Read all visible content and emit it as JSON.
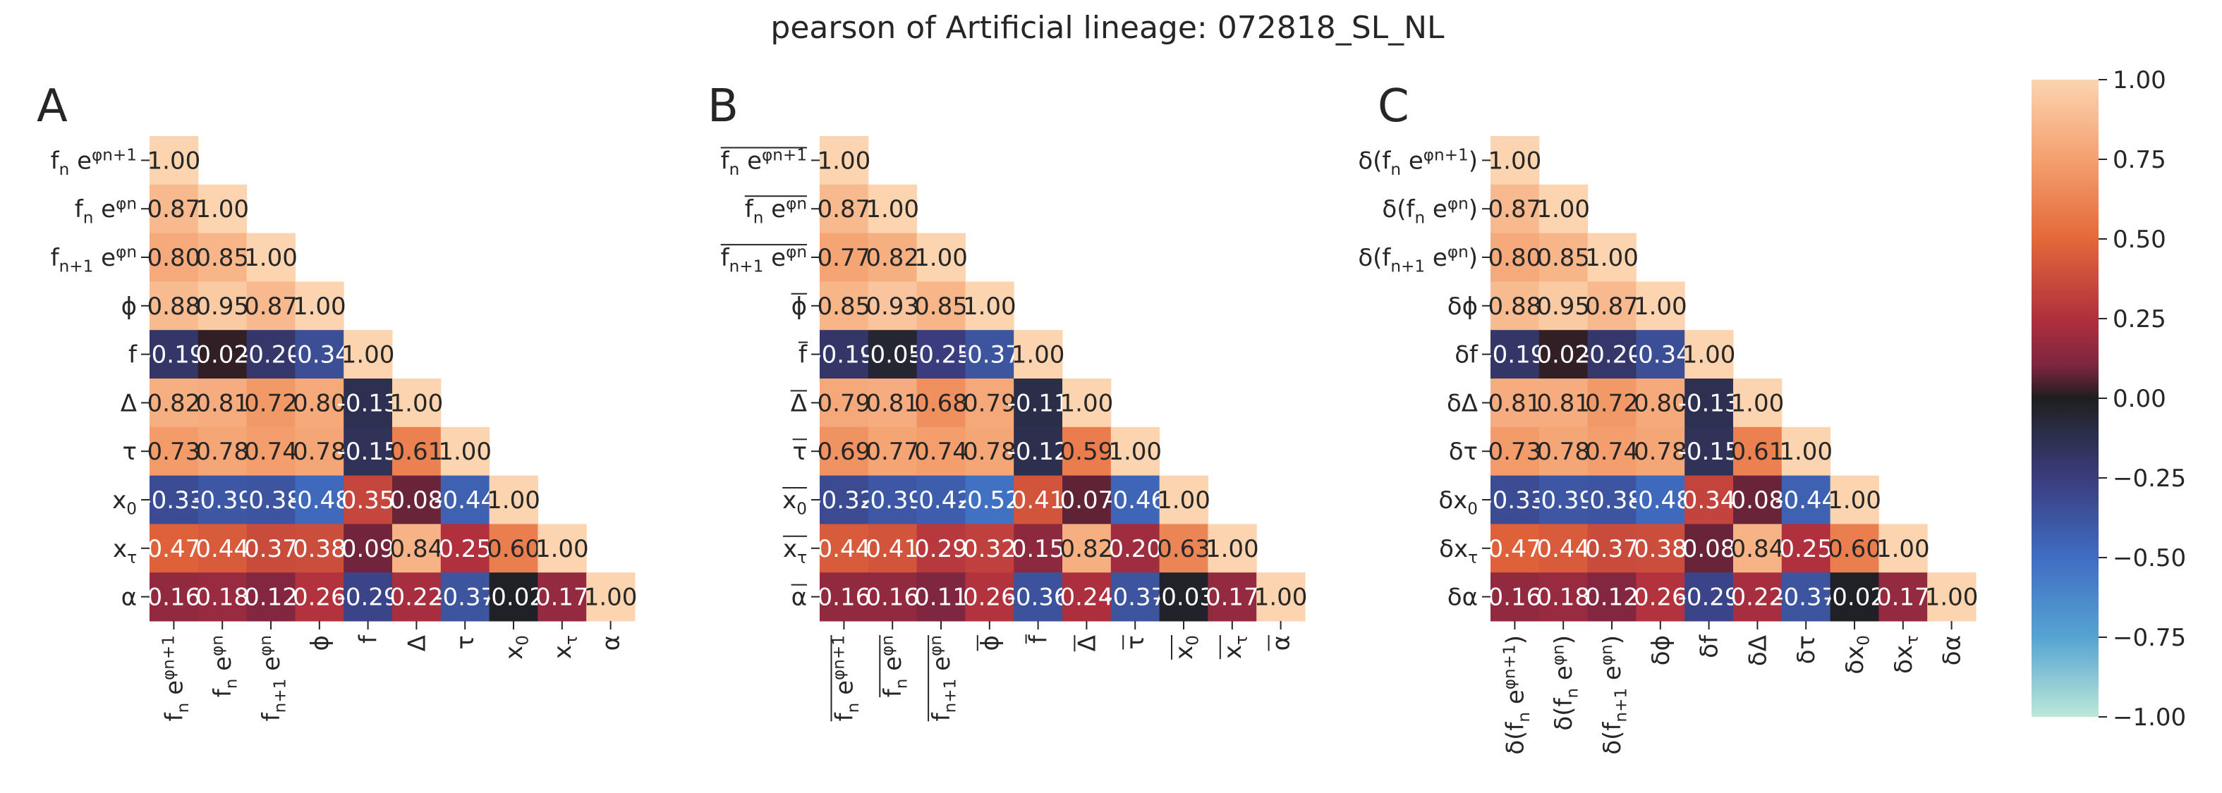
{
  "title": "pearson of Artificial lineage: 072818_SL_NL",
  "chart_data": [
    {
      "type": "heatmap",
      "panel": "A",
      "labels": [
        "f_n e^{φ_{n+1}}",
        "f_n e^{φ_n}",
        "f_{n+1} e^{φ_n}",
        "ϕ",
        "f",
        "Δ",
        "τ",
        "x_0",
        "x_τ",
        "α"
      ],
      "matrix": [
        [
          1.0
        ],
        [
          0.87,
          1.0
        ],
        [
          0.8,
          0.85,
          1.0
        ],
        [
          0.88,
          0.95,
          0.87,
          1.0
        ],
        [
          -0.19,
          0.02,
          -0.2,
          -0.34,
          1.0
        ],
        [
          0.82,
          0.81,
          0.72,
          0.8,
          -0.13,
          1.0
        ],
        [
          0.73,
          0.78,
          0.74,
          0.78,
          -0.15,
          0.61,
          1.0
        ],
        [
          -0.33,
          -0.39,
          -0.38,
          -0.48,
          0.35,
          0.08,
          -0.44,
          1.0
        ],
        [
          0.47,
          0.44,
          0.37,
          0.38,
          0.09,
          0.84,
          0.25,
          0.6,
          1.0
        ],
        [
          0.16,
          0.18,
          0.12,
          0.26,
          -0.29,
          0.22,
          -0.37,
          -0.02,
          0.17,
          1.0
        ]
      ],
      "vmin": -1,
      "vmax": 1
    },
    {
      "type": "heatmap",
      "panel": "B",
      "labels": [
        "overline{f_n e^{φ_{n+1}}}",
        "overline{f_n e^{φ_n}}",
        "overline{f_{n+1} e^{φ_n}}",
        "overline{ϕ}",
        "overline{f}",
        "overline{Δ}",
        "overline{τ}",
        "overline{x_0}",
        "overline{x_τ}",
        "overline{α}"
      ],
      "matrix": [
        [
          1.0
        ],
        [
          0.87,
          1.0
        ],
        [
          0.77,
          0.82,
          1.0
        ],
        [
          0.85,
          0.93,
          0.85,
          1.0
        ],
        [
          -0.19,
          -0.05,
          -0.25,
          -0.37,
          1.0
        ],
        [
          0.79,
          0.81,
          0.68,
          0.79,
          -0.11,
          1.0
        ],
        [
          0.69,
          0.77,
          0.74,
          0.78,
          -0.12,
          0.59,
          1.0
        ],
        [
          -0.32,
          -0.39,
          -0.42,
          -0.52,
          0.41,
          0.07,
          -0.46,
          1.0
        ],
        [
          0.44,
          0.41,
          0.29,
          0.32,
          0.15,
          0.82,
          0.2,
          0.63,
          1.0
        ],
        [
          0.16,
          0.16,
          0.11,
          0.26,
          -0.36,
          0.24,
          -0.37,
          -0.03,
          0.17,
          1.0
        ]
      ],
      "vmin": -1,
      "vmax": 1
    },
    {
      "type": "heatmap",
      "panel": "C",
      "labels": [
        "δ(f_n e^{φ_{n+1}})",
        "δ(f_n e^{φ_n})",
        "δ(f_{n+1} e^{φ_n})",
        "δϕ",
        "δf",
        "δΔ",
        "δτ",
        "δx_0",
        "δx_τ",
        "δα"
      ],
      "matrix": [
        [
          1.0
        ],
        [
          0.87,
          1.0
        ],
        [
          0.8,
          0.85,
          1.0
        ],
        [
          0.88,
          0.95,
          0.87,
          1.0
        ],
        [
          -0.19,
          0.02,
          -0.2,
          -0.34,
          1.0
        ],
        [
          0.81,
          0.81,
          0.72,
          0.8,
          -0.13,
          1.0
        ],
        [
          0.73,
          0.78,
          0.74,
          0.78,
          -0.15,
          0.61,
          1.0
        ],
        [
          -0.33,
          -0.39,
          -0.38,
          -0.48,
          0.34,
          0.08,
          -0.44,
          1.0
        ],
        [
          0.47,
          0.44,
          0.37,
          0.38,
          0.08,
          0.84,
          0.25,
          0.6,
          1.0
        ],
        [
          0.16,
          0.18,
          0.12,
          0.26,
          -0.29,
          0.22,
          -0.37,
          -0.02,
          0.17,
          1.0
        ]
      ],
      "vmin": -1,
      "vmax": 1
    }
  ],
  "colorbar": {
    "colormap": "icefire",
    "ticks": [
      "1.00",
      "0.75",
      "0.50",
      "0.25",
      "0.00",
      "−0.25",
      "−0.50",
      "−0.75",
      "−1.00"
    ]
  }
}
